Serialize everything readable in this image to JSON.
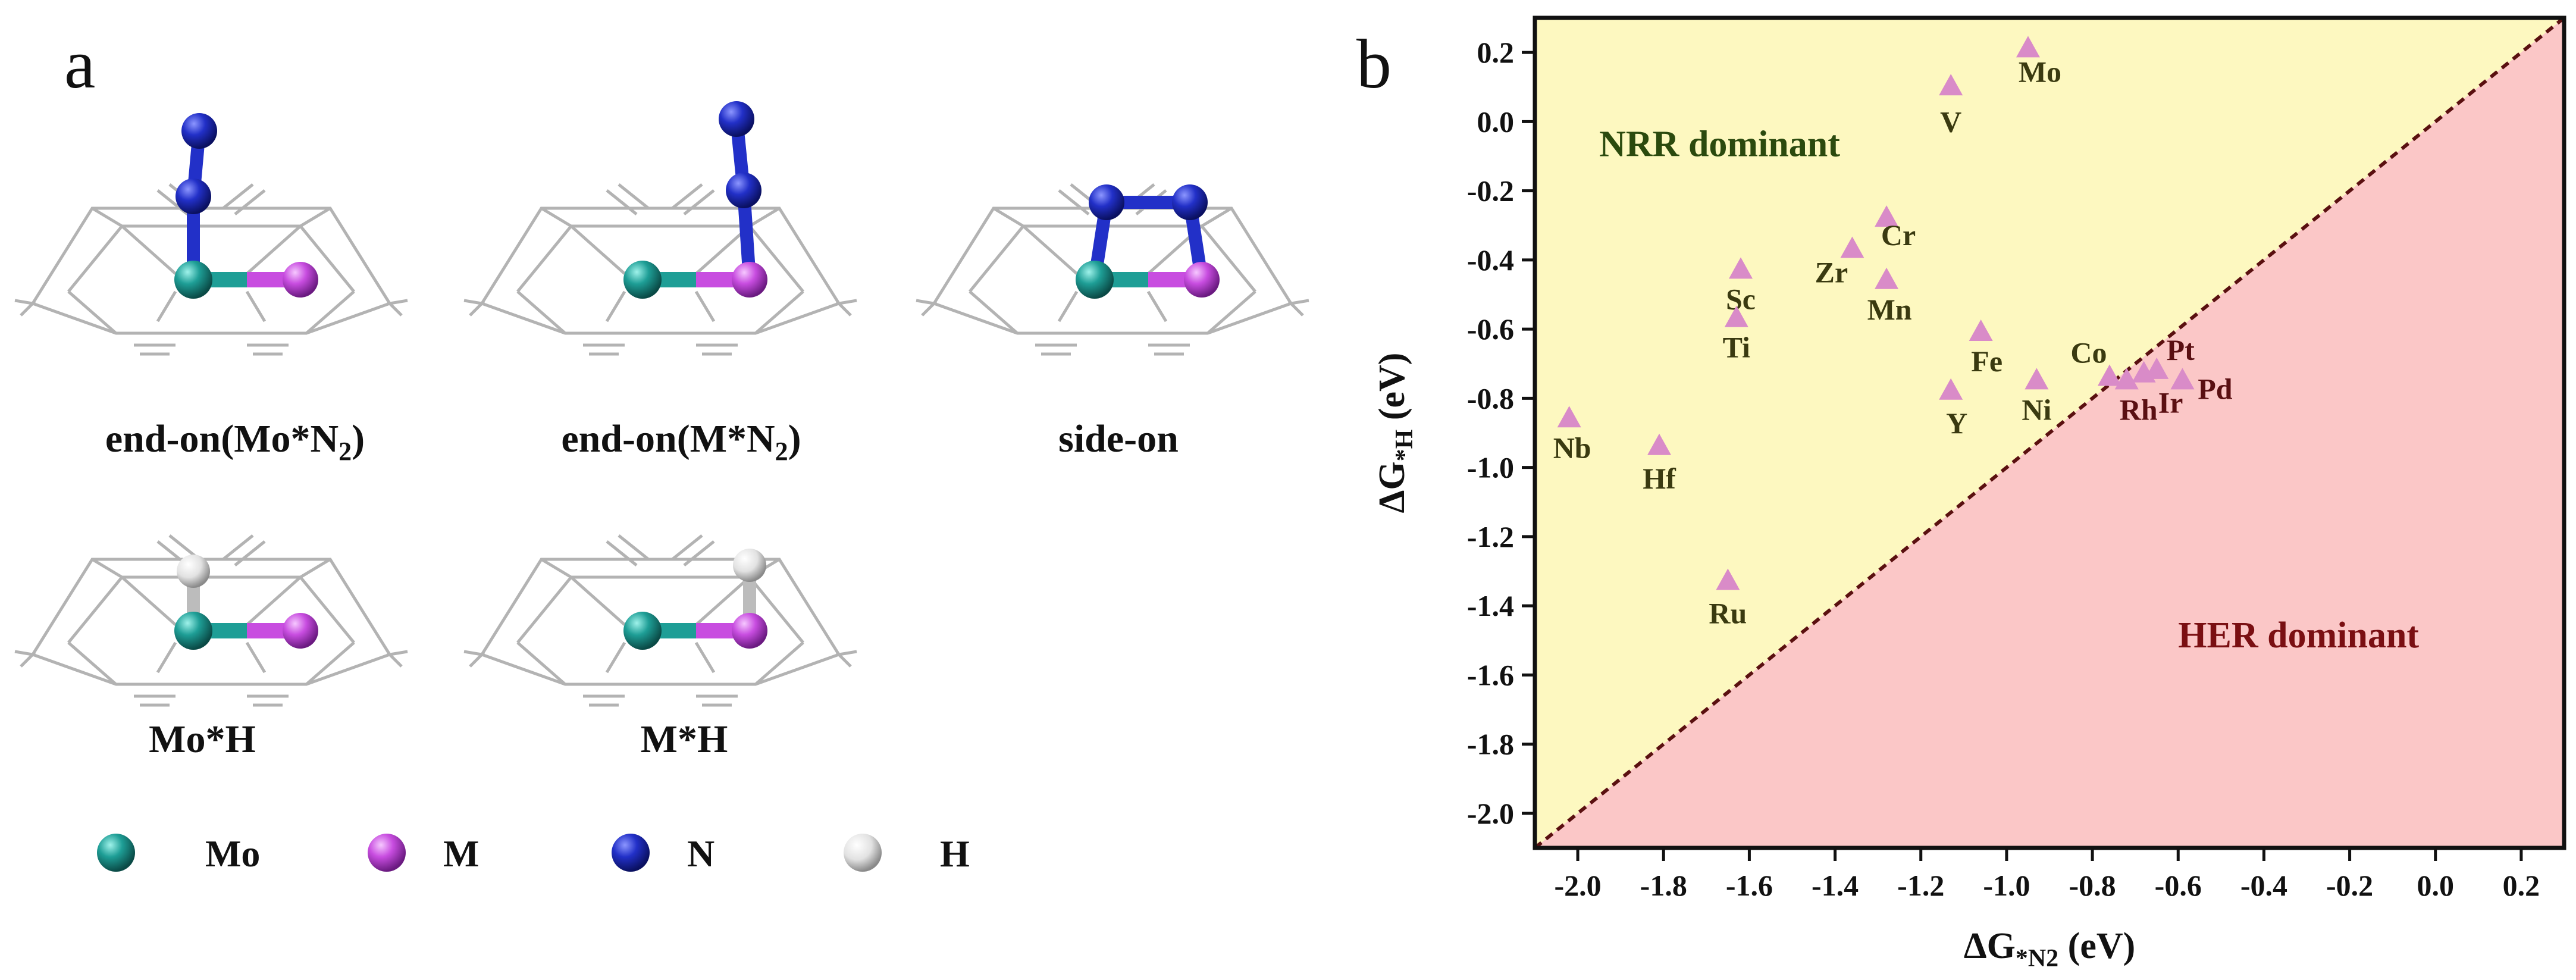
{
  "panel_a": {
    "letter": "a",
    "structures": [
      {
        "id": "end-on-mo",
        "caption_main": "end-on(Mo*N",
        "caption_sub": "2",
        "caption_tail": ")"
      },
      {
        "id": "end-on-m",
        "caption_main": "end-on(M*N",
        "caption_sub": "2",
        "caption_tail": ")"
      },
      {
        "id": "side-on",
        "caption_main": "side-on",
        "caption_sub": "",
        "caption_tail": ""
      },
      {
        "id": "mo-h",
        "caption_main": "Mo*H",
        "caption_sub": "",
        "caption_tail": ""
      },
      {
        "id": "m-h",
        "caption_main": "M*H",
        "caption_sub": "",
        "caption_tail": ""
      }
    ],
    "atom_legend": [
      {
        "label": "Mo",
        "color": "#1e9e96"
      },
      {
        "label": "M",
        "color": "#c84de0"
      },
      {
        "label": "N",
        "color": "#2230c8"
      },
      {
        "label": "H",
        "color": "#e8e8e8"
      }
    ]
  },
  "panel_b": {
    "letter": "b",
    "chart_data": {
      "type": "scatter",
      "xlabel": "ΔG*N2 (eV)",
      "ylabel": "ΔG*H (eV)",
      "xlim": [
        -2.1,
        0.3
      ],
      "ylim": [
        -2.1,
        0.3
      ],
      "x_ticks": [
        -2.0,
        -1.8,
        -1.6,
        -1.4,
        -1.2,
        -1.0,
        -0.8,
        -0.6,
        -0.4,
        -0.2,
        0.0,
        0.2
      ],
      "y_ticks": [
        0.2,
        0.0,
        -0.2,
        -0.4,
        -0.6,
        -0.8,
        -1.0,
        -1.2,
        -1.4,
        -1.6,
        -1.8,
        -2.0
      ],
      "regions": [
        {
          "label": "NRR dominant",
          "color": "#fdf8c0",
          "label_color": "#2b4a0e"
        },
        {
          "label": "HER dominant",
          "color": "#fbc7c7",
          "label_color": "#7a0f12"
        }
      ],
      "diagonal": {
        "style": "dashed",
        "color": "#5a1010"
      },
      "marker_color": "#d98bc8",
      "points": [
        {
          "label": "Mo",
          "x": -0.95,
          "y": 0.21
        },
        {
          "label": "V",
          "x": -1.13,
          "y": 0.1
        },
        {
          "label": "Cr",
          "x": -1.28,
          "y": -0.28
        },
        {
          "label": "Zr",
          "x": -1.36,
          "y": -0.37
        },
        {
          "label": "Mn",
          "x": -1.28,
          "y": -0.46
        },
        {
          "label": "Sc",
          "x": -1.62,
          "y": -0.43
        },
        {
          "label": "Ti",
          "x": -1.63,
          "y": -0.57
        },
        {
          "label": "Fe",
          "x": -1.06,
          "y": -0.61
        },
        {
          "label": "Y",
          "x": -1.13,
          "y": -0.78
        },
        {
          "label": "Ni",
          "x": -0.93,
          "y": -0.75
        },
        {
          "label": "Co",
          "x": -0.76,
          "y": -0.74
        },
        {
          "label": "Rh",
          "x": -0.72,
          "y": -0.75
        },
        {
          "label": "Ir",
          "x": -0.68,
          "y": -0.73
        },
        {
          "label": "Pt",
          "x": -0.65,
          "y": -0.72
        },
        {
          "label": "Pd",
          "x": -0.59,
          "y": -0.75
        },
        {
          "label": "Nb",
          "x": -2.02,
          "y": -0.86
        },
        {
          "label": "Hf",
          "x": -1.81,
          "y": -0.94
        },
        {
          "label": "Ru",
          "x": -1.65,
          "y": -1.33
        }
      ],
      "grid": false,
      "legend": "none"
    }
  }
}
